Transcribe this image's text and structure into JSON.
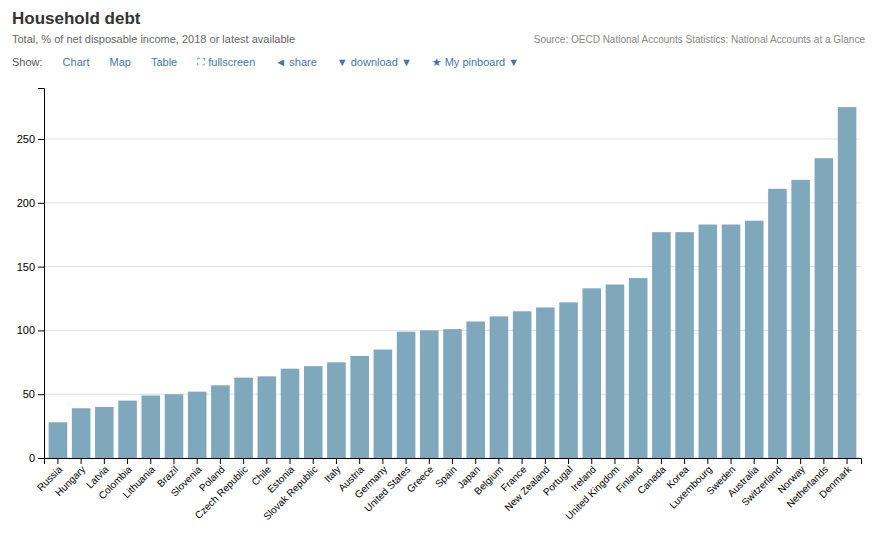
{
  "chart_data": {
    "type": "bar",
    "title": "Household debt",
    "subtitle": "Total, % of net disposable income, 2018 or latest available",
    "annotations": [
      "Source: OECD National Accounts Statistics: National Accounts at a Glance",
      "Show:",
      "Chart",
      "Map",
      "Table",
      "⛶ fullscreen",
      "◄ share",
      "▼ download ▼",
      "★ My pinboard ▼"
    ],
    "categories": [
      "Russia",
      "Hungary",
      "Latvia",
      "Colombia",
      "Lithuania",
      "Brazil",
      "Slovenia",
      "Poland",
      "Czech Republic",
      "Chile",
      "Estonia",
      "Slovak Republic",
      "Italy",
      "Austria",
      "Germany",
      "United States",
      "Greece",
      "Spain",
      "Japan",
      "Belgium",
      "France",
      "New Zealand",
      "Portugal",
      "Ireland",
      "United Kingdom",
      "Finland",
      "Canada",
      "Korea",
      "Luxembourg",
      "Sweden",
      "Australia",
      "Switzerland",
      "Norway",
      "Netherlands",
      "Denmark"
    ],
    "values": [
      28,
      39,
      40,
      45,
      49,
      50,
      52,
      57,
      63,
      64,
      70,
      72,
      75,
      80,
      85,
      99,
      100,
      101,
      107,
      111,
      115,
      118,
      122,
      133,
      136,
      141,
      177,
      177,
      183,
      183,
      186,
      211,
      218,
      235,
      275
    ],
    "color": "#7fa8bc",
    "ylim": [
      0,
      290
    ],
    "yticks": [
      0,
      50,
      100,
      150,
      200,
      250
    ],
    "grid": true
  }
}
